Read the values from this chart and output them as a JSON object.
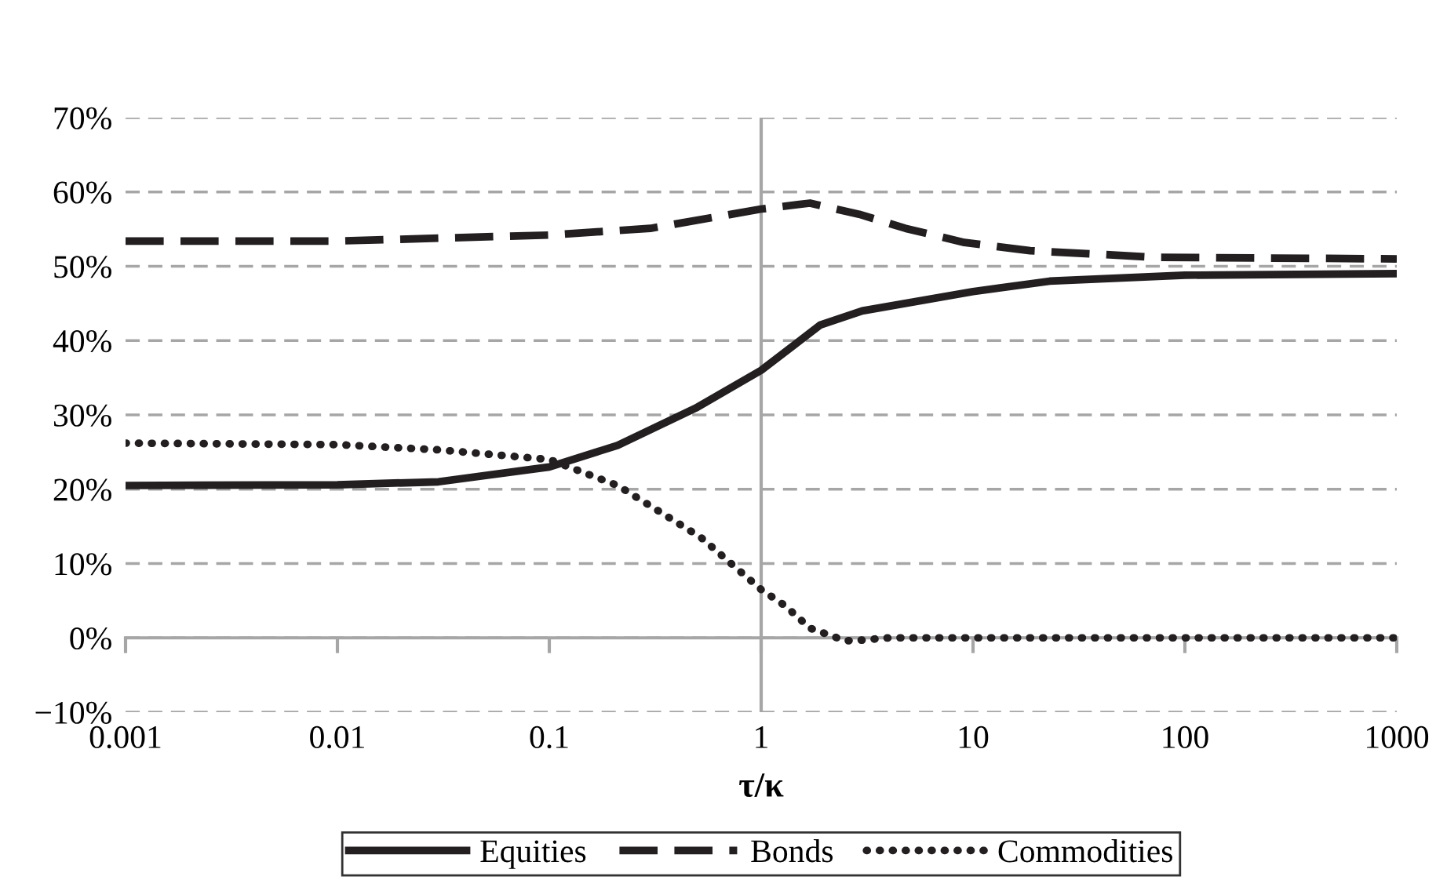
{
  "chart_data": {
    "type": "line",
    "xlabel": "τ/κ",
    "log": "x",
    "xlim": [
      0.001,
      1000
    ],
    "ylim": [
      -10,
      70
    ],
    "xticks": [
      {
        "value": 0.001,
        "label": "0.001"
      },
      {
        "value": 0.01,
        "label": "0.01"
      },
      {
        "value": 0.1,
        "label": "0.1"
      },
      1,
      10,
      100,
      1000
    ],
    "yticks": [
      {
        "value": -10,
        "label": "−10%"
      },
      {
        "value": 0,
        "label": "0%"
      },
      {
        "value": 10,
        "label": "10%"
      },
      {
        "value": 20,
        "label": "20%"
      },
      {
        "value": 30,
        "label": "30%"
      },
      {
        "value": 40,
        "label": "40%"
      },
      {
        "value": 50,
        "label": "50%"
      },
      {
        "value": 60,
        "label": "60%"
      },
      {
        "value": 70,
        "label": "70%"
      }
    ],
    "grid": "y",
    "legend": "bottom",
    "marker": "none",
    "ref_lines": [
      {
        "axis": "x",
        "value": 1,
        "color": "#a6a6a6",
        "line_style": "solid"
      }
    ],
    "series": [
      {
        "name": "Equities",
        "color": "#231f20",
        "line_style": "solid",
        "x": [
          0.001,
          0.01,
          0.03,
          0.1,
          0.21,
          0.49,
          1,
          1.9,
          3,
          10,
          23,
          100,
          1000
        ],
        "values": [
          20.5,
          20.6,
          21,
          23,
          25.9,
          30.9,
          36,
          42.1,
          44,
          46.6,
          48,
          48.8,
          49
        ]
      },
      {
        "name": "Bonds",
        "color": "#231f20",
        "line_style": "dashed",
        "x": [
          0.001,
          0.01,
          0.1,
          0.3,
          1,
          1.7,
          2.9,
          4.8,
          9.1,
          18.6,
          74,
          1000
        ],
        "values": [
          53.4,
          53.4,
          54.2,
          55.1,
          57.7,
          58.5,
          57,
          55.1,
          53.2,
          52.1,
          51.2,
          51
        ]
      },
      {
        "name": "Commodities",
        "color": "#231f20",
        "line_style": "dotted",
        "x": [
          0.001,
          0.01,
          0.03,
          0.1,
          0.21,
          0.52,
          1,
          1.3,
          1.7,
          2.5,
          3,
          4,
          1000
        ],
        "values": [
          26.2,
          26,
          25.3,
          24,
          20.5,
          13.5,
          6.5,
          4.3,
          1.3,
          -0.4,
          -0.3,
          0,
          0
        ]
      }
    ]
  }
}
